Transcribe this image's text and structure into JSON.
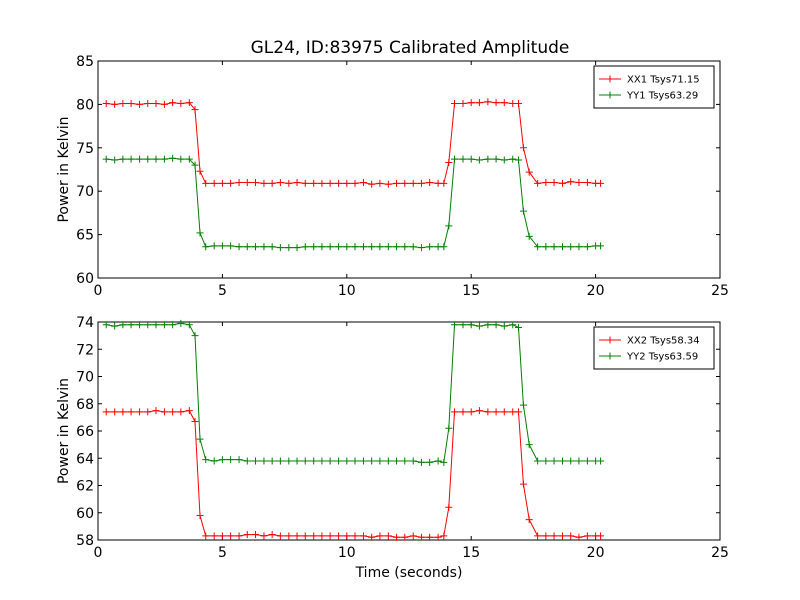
{
  "chart_data": [
    {
      "type": "line",
      "title": "GL24, ID:83975 Calibrated Amplitude",
      "xlabel": "",
      "ylabel": "Power in Kelvin",
      "xlim": [
        0,
        25
      ],
      "ylim": [
        60,
        85
      ],
      "xticks": [
        "0",
        "5",
        "10",
        "15",
        "20",
        "25"
      ],
      "yticks": [
        "60",
        "65",
        "70",
        "75",
        "80",
        "85"
      ],
      "grid": false,
      "legend_position": "top-right",
      "x": [
        0.33,
        0.67,
        1.0,
        1.33,
        1.67,
        2.0,
        2.33,
        2.67,
        3.0,
        3.33,
        3.67,
        3.9,
        4.1,
        4.33,
        4.67,
        5.0,
        5.33,
        5.67,
        6.0,
        6.33,
        6.67,
        7.0,
        7.33,
        7.67,
        8.0,
        8.33,
        8.67,
        9.0,
        9.33,
        9.67,
        10.0,
        10.33,
        10.67,
        11.0,
        11.33,
        11.67,
        12.0,
        12.33,
        12.67,
        13.0,
        13.33,
        13.67,
        13.9,
        14.1,
        14.33,
        14.67,
        15.0,
        15.33,
        15.67,
        16.0,
        16.33,
        16.67,
        16.9,
        17.1,
        17.33,
        17.67,
        18.0,
        18.33,
        18.67,
        19.0,
        19.33,
        19.67,
        20.0,
        20.2
      ],
      "series": [
        {
          "name": "XX1 Tsys71.15",
          "color": "#ff0000",
          "values": [
            80.1,
            80.0,
            80.1,
            80.1,
            80.0,
            80.1,
            80.1,
            80.0,
            80.2,
            80.1,
            80.2,
            79.4,
            72.3,
            70.9,
            70.9,
            70.9,
            70.9,
            71.0,
            71.0,
            71.0,
            70.9,
            70.9,
            71.0,
            70.9,
            71.0,
            70.9,
            70.9,
            70.9,
            70.9,
            70.9,
            70.9,
            70.9,
            71.0,
            70.8,
            70.9,
            70.8,
            70.9,
            70.9,
            70.9,
            70.9,
            71.0,
            70.9,
            70.9,
            73.3,
            80.1,
            80.1,
            80.2,
            80.2,
            80.3,
            80.2,
            80.2,
            80.1,
            80.1,
            75.0,
            72.2,
            70.9,
            71.0,
            71.0,
            70.9,
            71.1,
            71.0,
            71.0,
            70.9,
            70.9
          ]
        },
        {
          "name": "YY1 Tsys63.29",
          "color": "#008000",
          "values": [
            73.7,
            73.6,
            73.7,
            73.7,
            73.7,
            73.7,
            73.7,
            73.7,
            73.8,
            73.7,
            73.7,
            73.0,
            65.2,
            63.6,
            63.7,
            63.7,
            63.7,
            63.6,
            63.6,
            63.6,
            63.6,
            63.6,
            63.5,
            63.5,
            63.5,
            63.6,
            63.6,
            63.6,
            63.6,
            63.6,
            63.6,
            63.6,
            63.6,
            63.6,
            63.6,
            63.6,
            63.6,
            63.6,
            63.6,
            63.5,
            63.6,
            63.6,
            63.6,
            66.0,
            73.7,
            73.7,
            73.7,
            73.6,
            73.7,
            73.7,
            73.6,
            73.7,
            73.6,
            67.7,
            64.8,
            63.6,
            63.6,
            63.6,
            63.6,
            63.6,
            63.6,
            63.6,
            63.7,
            63.7
          ]
        }
      ]
    },
    {
      "type": "line",
      "title": "",
      "xlabel": "Time (seconds)",
      "ylabel": "Power in Kelvin",
      "xlim": [
        0,
        25
      ],
      "ylim": [
        58,
        74
      ],
      "xticks": [
        "0",
        "5",
        "10",
        "15",
        "20",
        "25"
      ],
      "yticks": [
        "58",
        "60",
        "62",
        "64",
        "66",
        "68",
        "70",
        "72",
        "74"
      ],
      "grid": false,
      "legend_position": "top-right",
      "x": [
        0.33,
        0.67,
        1.0,
        1.33,
        1.67,
        2.0,
        2.33,
        2.67,
        3.0,
        3.33,
        3.67,
        3.9,
        4.1,
        4.33,
        4.67,
        5.0,
        5.33,
        5.67,
        6.0,
        6.33,
        6.67,
        7.0,
        7.33,
        7.67,
        8.0,
        8.33,
        8.67,
        9.0,
        9.33,
        9.67,
        10.0,
        10.33,
        10.67,
        11.0,
        11.33,
        11.67,
        12.0,
        12.33,
        12.67,
        13.0,
        13.33,
        13.67,
        13.9,
        14.1,
        14.33,
        14.67,
        15.0,
        15.33,
        15.67,
        16.0,
        16.33,
        16.67,
        16.9,
        17.1,
        17.33,
        17.67,
        18.0,
        18.33,
        18.67,
        19.0,
        19.33,
        19.67,
        20.0,
        20.2
      ],
      "series": [
        {
          "name": "XX2 Tsys58.34",
          "color": "#ff0000",
          "values": [
            67.4,
            67.4,
            67.4,
            67.4,
            67.4,
            67.4,
            67.5,
            67.4,
            67.4,
            67.4,
            67.5,
            66.7,
            59.8,
            58.3,
            58.3,
            58.3,
            58.3,
            58.3,
            58.4,
            58.4,
            58.3,
            58.4,
            58.3,
            58.3,
            58.3,
            58.3,
            58.3,
            58.3,
            58.3,
            58.3,
            58.3,
            58.3,
            58.3,
            58.2,
            58.3,
            58.3,
            58.2,
            58.2,
            58.3,
            58.2,
            58.2,
            58.2,
            58.3,
            60.4,
            67.4,
            67.4,
            67.4,
            67.5,
            67.4,
            67.4,
            67.4,
            67.4,
            67.4,
            62.1,
            59.5,
            58.3,
            58.3,
            58.3,
            58.3,
            58.3,
            58.2,
            58.3,
            58.3,
            58.3
          ]
        },
        {
          "name": "YY2 Tsys63.59",
          "color": "#008000",
          "values": [
            73.8,
            73.7,
            73.8,
            73.8,
            73.8,
            73.8,
            73.8,
            73.8,
            73.8,
            73.9,
            73.8,
            73.0,
            65.4,
            63.9,
            63.8,
            63.9,
            63.9,
            63.9,
            63.8,
            63.8,
            63.8,
            63.8,
            63.8,
            63.8,
            63.8,
            63.8,
            63.8,
            63.8,
            63.8,
            63.8,
            63.8,
            63.8,
            63.8,
            63.8,
            63.8,
            63.8,
            63.8,
            63.8,
            63.8,
            63.7,
            63.7,
            63.8,
            63.7,
            66.2,
            73.8,
            73.8,
            73.8,
            73.7,
            73.8,
            73.8,
            73.7,
            73.8,
            73.6,
            67.9,
            65.0,
            63.8,
            63.8,
            63.8,
            63.8,
            63.8,
            63.8,
            63.8,
            63.8,
            63.8
          ]
        }
      ]
    }
  ]
}
